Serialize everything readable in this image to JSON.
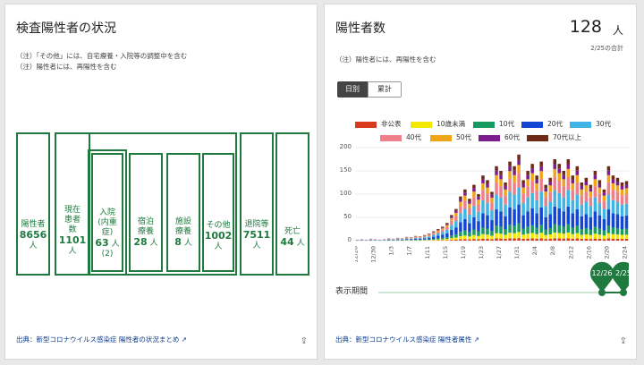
{
  "left": {
    "title": "検査陽性者の状況",
    "notes": [
      "（注）「その他」には、自宅療養・入院等の調整中を含む",
      "（注）陽性者には、再陽性を含む"
    ],
    "boxes": [
      {
        "label": "陽性者",
        "value": "8656",
        "unit": "人"
      },
      {
        "label": "現在患者数",
        "value": "1101",
        "unit": "人"
      },
      {
        "label": "入院(内重症)",
        "value": "63",
        "unit": "人",
        "extra": "(2)"
      },
      {
        "label": "宿泊療養",
        "value": "28",
        "unit": "人"
      },
      {
        "label": "施設療養",
        "value": "8",
        "unit": "人"
      },
      {
        "label": "その他",
        "value": "1002",
        "unit": "人"
      },
      {
        "label": "退院等",
        "value": "7511",
        "unit": "人"
      },
      {
        "label": "死亡",
        "value": "44",
        "unit": "人"
      }
    ],
    "source": "出典：新型コロナウイルス感染症 陽性者の状況まとめ ↗",
    "share": "⇪"
  },
  "right": {
    "title": "陽性者数",
    "big_value": "128",
    "unit": "人",
    "sub": "2/25の合計",
    "note": "（注）陽性者には、再陽性を含む",
    "toggle": [
      "日別",
      "累計"
    ],
    "legend": [
      {
        "name": "非公表",
        "color": "#d83b1f"
      },
      {
        "name": "10歳未満",
        "color": "#f5e800"
      },
      {
        "name": "10代",
        "color": "#189a60"
      },
      {
        "name": "20代",
        "color": "#1346d2"
      },
      {
        "name": "30代",
        "color": "#41b4e6"
      },
      {
        "name": "40代",
        "color": "#ee7f88"
      },
      {
        "name": "50代",
        "color": "#f0a418"
      },
      {
        "name": "60代",
        "color": "#7b1d8f"
      },
      {
        "name": "70代以上",
        "color": "#6e2a14"
      }
    ],
    "yticks": [
      "200",
      "150",
      "100",
      "50",
      "0"
    ],
    "xticks": [
      "12/26",
      "12/30",
      "1/3",
      "1/7",
      "1/11",
      "1/15",
      "1/19",
      "1/23",
      "1/27",
      "1/31",
      "2/4",
      "2/8",
      "2/12",
      "2/16",
      "2/20",
      "2/24"
    ],
    "period_label": "表示期間",
    "slider_start": "12/26",
    "slider_end": "2/25",
    "source": "出典：新型コロナウイルス感染症 陽性者属性 ↗",
    "share": "⇪"
  },
  "chart_data": {
    "type": "bar",
    "stacked": true,
    "ylim": [
      0,
      200
    ],
    "x_start": "12/26",
    "x_end": "2/25",
    "totals": [
      2,
      3,
      2,
      4,
      3,
      2,
      3,
      5,
      4,
      6,
      5,
      8,
      7,
      10,
      9,
      12,
      15,
      20,
      25,
      30,
      38,
      55,
      68,
      95,
      110,
      90,
      120,
      100,
      140,
      130,
      105,
      160,
      150,
      125,
      170,
      160,
      185,
      130,
      150,
      165,
      140,
      170,
      120,
      135,
      175,
      165,
      150,
      175,
      140,
      160,
      125,
      135,
      120,
      150,
      130,
      110,
      160,
      140,
      135,
      125,
      128
    ],
    "shares": [
      0.03,
      0.07,
      0.1,
      0.22,
      0.2,
      0.16,
      0.1,
      0.06,
      0.06
    ]
  }
}
